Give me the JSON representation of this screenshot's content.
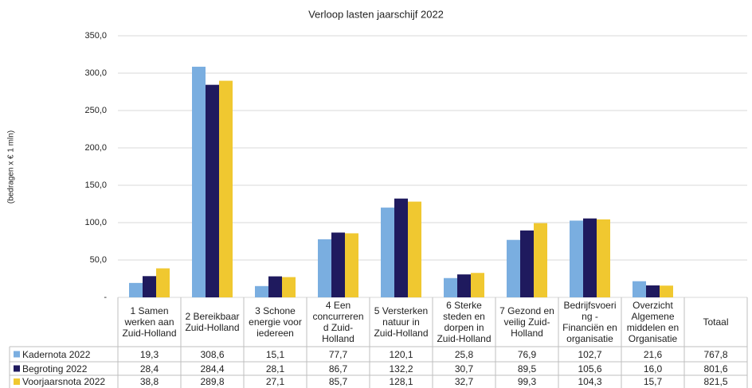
{
  "chart_data": {
    "type": "bar",
    "title": "Verloop lasten jaarschijf 2022",
    "y_label": "(bedragen x € 1 mln)",
    "categories": [
      "1 Samen\nwerken aan\nZuid-Holland",
      "2 Bereikbaar\nZuid-Holland",
      "3 Schone\nenergie voor\niedereen",
      "4 Een\nconcurreren\nd Zuid-\nHolland",
      "5 Versterken\nnatuur in\nZuid-Holland",
      "6 Sterke\nsteden en\ndorpen in\nZuid-Holland",
      "7 Gezond en\nveilig Zuid-\nHolland",
      "Bedrijfsvoeri\nng -\nFinanciën en\norganisatie",
      "Overzicht\nAlgemene\nmiddelen en\nOrganisatie"
    ],
    "total_header": "Totaal",
    "series": [
      {
        "name": "Kadernota 2022",
        "color": "#7aaee0",
        "values": [
          19.3,
          308.6,
          15.1,
          77.7,
          120.1,
          25.8,
          76.9,
          102.7,
          21.6
        ],
        "value_labels": [
          "19,3",
          "308,6",
          "15,1",
          "77,7",
          "120,1",
          "25,8",
          "76,9",
          "102,7",
          "21,6"
        ],
        "total": 767.8,
        "total_label": "767,8"
      },
      {
        "name": "Begroting 2022",
        "color": "#1f1a5e",
        "values": [
          28.4,
          284.4,
          28.1,
          86.7,
          132.2,
          30.7,
          89.5,
          105.6,
          16.0
        ],
        "value_labels": [
          "28,4",
          "284,4",
          "28,1",
          "86,7",
          "132,2",
          "30,7",
          "89,5",
          "105,6",
          "16,0"
        ],
        "total": 801.6,
        "total_label": "801,6"
      },
      {
        "name": "Voorjaarsnota 2022",
        "color": "#f0c830",
        "values": [
          38.8,
          289.8,
          27.1,
          85.7,
          128.1,
          32.7,
          99.3,
          104.3,
          15.7
        ],
        "value_labels": [
          "38,8",
          "289,8",
          "27,1",
          "85,7",
          "128,1",
          "32,7",
          "99,3",
          "104,3",
          "15,7"
        ],
        "total": 821.5,
        "total_label": "821,5"
      }
    ],
    "ylim": [
      0,
      350
    ],
    "yticks": [
      {
        "value": 0,
        "label": "-"
      },
      {
        "value": 50,
        "label": "50,0"
      },
      {
        "value": 100,
        "label": "100,0"
      },
      {
        "value": 150,
        "label": "150,0"
      },
      {
        "value": 200,
        "label": "200,0"
      },
      {
        "value": 250,
        "label": "250,0"
      },
      {
        "value": 300,
        "label": "300,0"
      },
      {
        "value": 350,
        "label": "350,0"
      }
    ],
    "grid": true
  }
}
